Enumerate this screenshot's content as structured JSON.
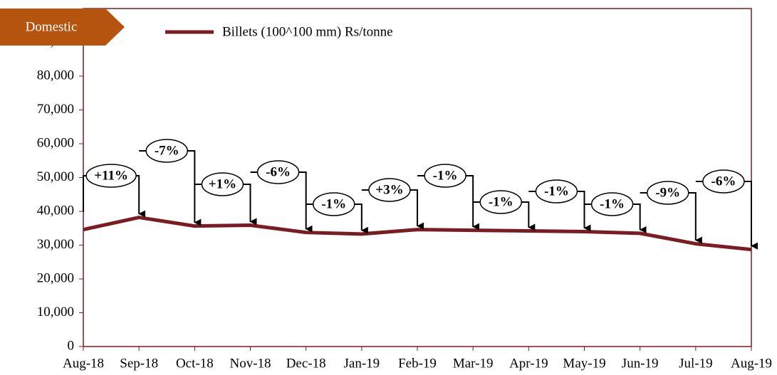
{
  "chart_data": {
    "type": "line",
    "badge": "Domestic",
    "categories": [
      "Aug-18",
      "Sep-18",
      "Oct-18",
      "Nov-18",
      "Dec-18",
      "Jan-19",
      "Feb-19",
      "Mar-19",
      "Apr-19",
      "May-19",
      "Jun-19",
      "Jul-19",
      "Aug-19"
    ],
    "series": [
      {
        "name": "Billets (100^100 mm) Rs/tonne",
        "color": "#7b1c22",
        "values": [
          34600,
          38200,
          35650,
          35900,
          33750,
          33300,
          34600,
          34400,
          34200,
          34000,
          33500,
          30400,
          28700
        ]
      }
    ],
    "annotations": [
      "+11%",
      "-7%",
      "+1%",
      "-6%",
      "-1%",
      "+3%",
      "-1%",
      "-1%",
      "-1%",
      "-1%",
      "-9%",
      "-6%"
    ],
    "ylim": [
      0,
      100000
    ],
    "yticks": [
      0,
      {
        "value": 10000,
        "label": "10,000"
      },
      {
        "value": 20000,
        "label": "20,000"
      },
      {
        "value": 30000,
        "label": "30,000"
      },
      {
        "value": 40000,
        "label": "40,000"
      },
      {
        "value": 50000,
        "label": "50,000"
      },
      {
        "value": 60000,
        "label": "60,000"
      },
      {
        "value": 70000,
        "label": "70,000"
      },
      {
        "value": 80000,
        "label": "80,000"
      },
      {
        "value": 90000,
        "label": "90,000"
      }
    ],
    "legend": "top"
  }
}
